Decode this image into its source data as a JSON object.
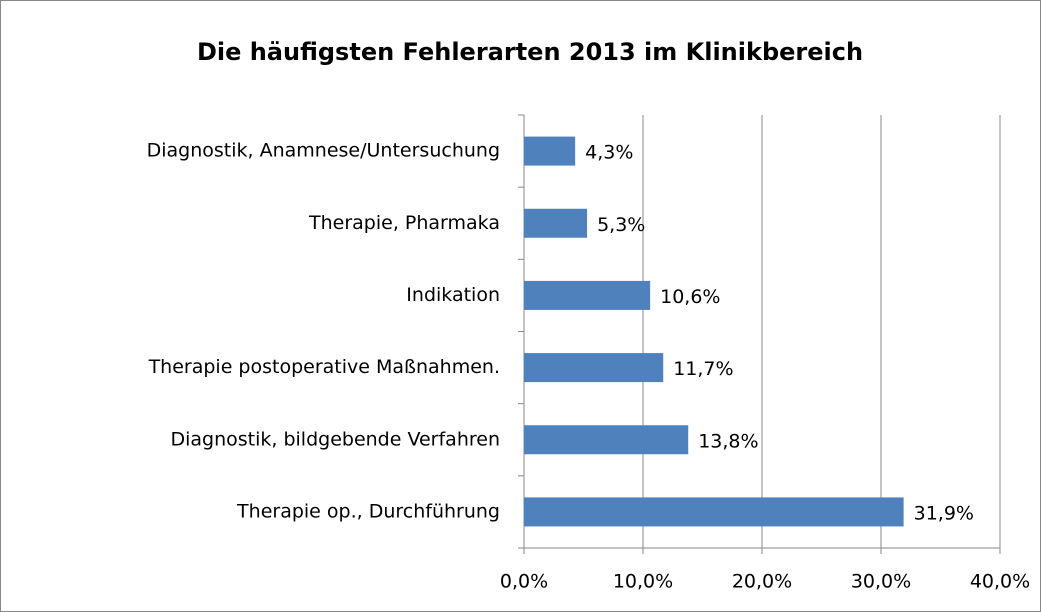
{
  "chart_data": {
    "type": "bar",
    "orientation": "horizontal",
    "title": "Die häufigsten Fehlerarten 2013 im Klinikbereich",
    "categories": [
      "Diagnostik, Anamnese/Untersuchung",
      "Therapie, Pharmaka",
      "Indikation",
      "Therapie postoperative Maßnahmen.",
      "Diagnostik, bildgebende Verfahren",
      "Therapie op., Durchführung"
    ],
    "values": [
      4.3,
      5.3,
      10.6,
      11.7,
      13.8,
      31.9
    ],
    "value_labels": [
      "4,3%",
      "5,3%",
      "10,6%",
      "11,7%",
      "13,8%",
      "31,9%"
    ],
    "color": "#4f81bd",
    "xlim": [
      0,
      40
    ],
    "xticks": [
      {
        "value": 0,
        "label": "0,0%"
      },
      {
        "value": 10,
        "label": "10,0%"
      },
      {
        "value": 20,
        "label": "20,0%"
      },
      {
        "value": 30,
        "label": "30,0%"
      },
      {
        "value": 40,
        "label": "40,0%"
      }
    ],
    "grid": true
  }
}
